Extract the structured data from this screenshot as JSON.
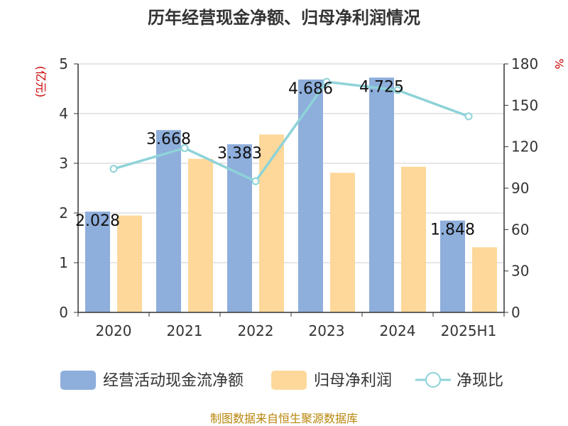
{
  "chart_data": {
    "type": "bar",
    "title": "历年经营现金净额、归母净利润情况",
    "left_unit": "(亿元)",
    "right_unit": "%",
    "categories": [
      "2020",
      "2021",
      "2022",
      "2023",
      "2024",
      "2025H1"
    ],
    "left_axis": {
      "min": 0,
      "max": 5,
      "ticks": [
        "0",
        "1",
        "2",
        "3",
        "4",
        "5"
      ]
    },
    "right_axis": {
      "min": 0,
      "max": 180,
      "ticks": [
        "0",
        "30",
        "60",
        "90",
        "120",
        "150",
        "180"
      ]
    },
    "series": [
      {
        "name": "经营活动现金流净额",
        "type": "bar",
        "axis": "left",
        "color": "#8eaedc",
        "values": [
          2.028,
          3.668,
          3.383,
          4.686,
          4.725,
          1.848
        ],
        "labels": [
          "2.028",
          "3.668",
          "3.383",
          "4.686",
          "4.725",
          "1.848"
        ]
      },
      {
        "name": "归母净利润",
        "type": "bar",
        "axis": "left",
        "color": "#fdd89a",
        "values": [
          1.95,
          3.09,
          3.58,
          2.81,
          2.93,
          1.31
        ]
      },
      {
        "name": "净现比",
        "type": "line",
        "axis": "right",
        "color": "#8ed3d8",
        "values": [
          104,
          119,
          95,
          167,
          161,
          142
        ]
      }
    ],
    "grid": true,
    "legend": "bottom",
    "source": "制图数据来自恒生聚源数据库"
  }
}
